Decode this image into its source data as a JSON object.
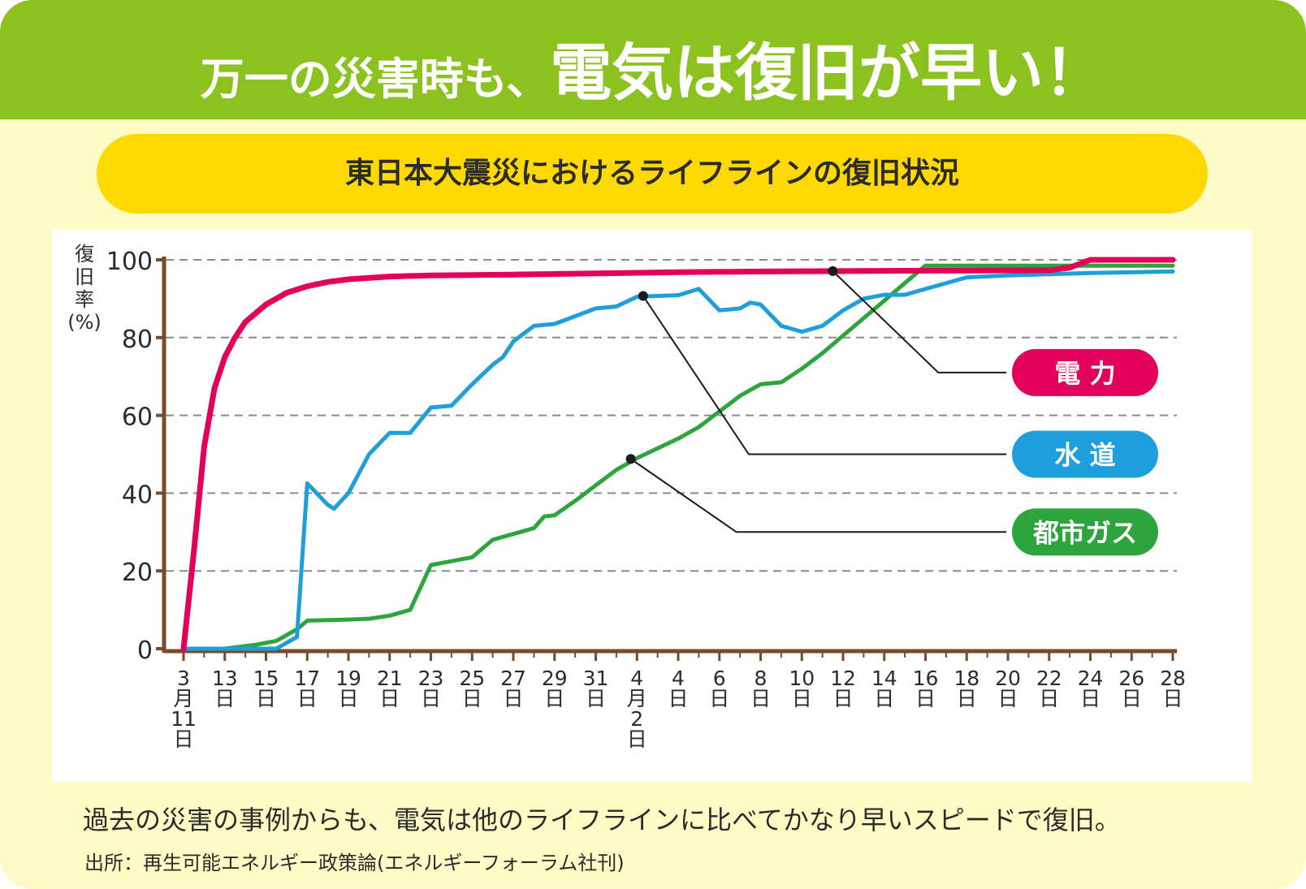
{
  "header": {
    "title_small": "万一の災害時も、",
    "title_big": "電気は復旧が早い！",
    "subtitle": "東日本大震災におけるライフラインの復旧状況"
  },
  "footer": {
    "caption": "過去の災害の事例からも、電気は他のライフラインに比べてかなり早いスピードで復旧。",
    "source": "出所：再生可能エネルギー政策論(エネルギーフォーラム社刊)"
  },
  "colors": {
    "electric": "#e3005a",
    "water": "#1e9edb",
    "gas": "#2ea53c",
    "axis": "#7a4a2a",
    "banner": "#8cc220",
    "pill": "#ffd900",
    "background": "#fffbc4"
  },
  "chart_data": {
    "type": "line",
    "ylabel": "復旧率(%)",
    "ylim": [
      0,
      100
    ],
    "yticks": [
      "0",
      "20",
      "40",
      "60",
      "80",
      "100"
    ],
    "grid": "horizontal dashed",
    "x_range": [
      0,
      48
    ],
    "x_ticks": [
      {
        "x": 0,
        "label": "3\n月\n11\n日"
      },
      {
        "x": 2,
        "label": "13\n日"
      },
      {
        "x": 4,
        "label": "15\n日"
      },
      {
        "x": 6,
        "label": "17\n日"
      },
      {
        "x": 8,
        "label": "19\n日"
      },
      {
        "x": 10,
        "label": "21\n日"
      },
      {
        "x": 12,
        "label": "23\n日"
      },
      {
        "x": 14,
        "label": "25\n日"
      },
      {
        "x": 16,
        "label": "27\n日"
      },
      {
        "x": 18,
        "label": "29\n日"
      },
      {
        "x": 20,
        "label": "31\n日"
      },
      {
        "x": 22,
        "label": "4\n月\n2\n日"
      },
      {
        "x": 24,
        "label": "4\n日"
      },
      {
        "x": 26,
        "label": "6\n日"
      },
      {
        "x": 28,
        "label": "8\n日"
      },
      {
        "x": 30,
        "label": "10\n日"
      },
      {
        "x": 32,
        "label": "12\n日"
      },
      {
        "x": 34,
        "label": "14\n日"
      },
      {
        "x": 36,
        "label": "16\n日"
      },
      {
        "x": 38,
        "label": "18\n日"
      },
      {
        "x": 40,
        "label": "20\n日"
      },
      {
        "x": 42,
        "label": "22\n日"
      },
      {
        "x": 44,
        "label": "24\n日"
      },
      {
        "x": 46,
        "label": "26\n日"
      },
      {
        "x": 48,
        "label": "28\n日"
      }
    ],
    "series": [
      {
        "name": "電 力",
        "color_key": "electric",
        "points": [
          [
            0,
            0
          ],
          [
            0.5,
            25
          ],
          [
            1,
            52
          ],
          [
            1.5,
            67
          ],
          [
            2,
            75
          ],
          [
            2.5,
            80
          ],
          [
            3,
            84
          ],
          [
            4,
            88.5
          ],
          [
            5,
            91.5
          ],
          [
            6,
            93.2
          ],
          [
            7,
            94.3
          ],
          [
            8,
            95
          ],
          [
            10,
            95.7
          ],
          [
            12,
            96
          ],
          [
            16,
            96.2
          ],
          [
            20,
            96.5
          ],
          [
            24,
            96.8
          ],
          [
            28,
            97
          ],
          [
            32,
            97.1
          ],
          [
            36,
            97.2
          ],
          [
            42,
            97.3
          ],
          [
            43,
            98
          ],
          [
            44,
            100
          ],
          [
            48,
            100
          ]
        ]
      },
      {
        "name": "水 道",
        "color_key": "water",
        "points": [
          [
            0,
            0
          ],
          [
            4.5,
            0
          ],
          [
            5.5,
            3
          ],
          [
            6,
            42.5
          ],
          [
            7,
            37
          ],
          [
            7.3,
            36
          ],
          [
            8,
            40
          ],
          [
            8.5,
            45
          ],
          [
            9,
            50
          ],
          [
            10,
            55.5
          ],
          [
            11,
            55.5
          ],
          [
            12,
            62
          ],
          [
            13,
            62.5
          ],
          [
            14,
            68
          ],
          [
            15,
            73
          ],
          [
            15.5,
            75
          ],
          [
            16,
            79
          ],
          [
            16.5,
            81
          ],
          [
            17,
            83
          ],
          [
            18,
            83.5
          ],
          [
            19,
            85.5
          ],
          [
            20,
            87.5
          ],
          [
            21,
            88
          ],
          [
            22,
            90.5
          ],
          [
            23,
            90.7
          ],
          [
            24,
            90.9
          ],
          [
            25,
            92.5
          ],
          [
            26,
            87
          ],
          [
            27,
            87.5
          ],
          [
            27.5,
            89
          ],
          [
            28,
            88.5
          ],
          [
            29,
            83
          ],
          [
            30,
            81.5
          ],
          [
            31,
            83
          ],
          [
            32,
            87
          ],
          [
            33,
            90
          ],
          [
            34,
            91
          ],
          [
            35,
            91
          ],
          [
            36,
            92.5
          ],
          [
            38,
            95.5
          ],
          [
            40,
            96
          ],
          [
            42,
            96.3
          ],
          [
            44,
            96.6
          ],
          [
            48,
            97
          ]
        ]
      },
      {
        "name": "都市ガス",
        "color_key": "gas",
        "points": [
          [
            0,
            0
          ],
          [
            2,
            0
          ],
          [
            3.5,
            1
          ],
          [
            4.5,
            2
          ],
          [
            5.5,
            5
          ],
          [
            6,
            7.2
          ],
          [
            8,
            7.5
          ],
          [
            9,
            7.7
          ],
          [
            10,
            8.5
          ],
          [
            11,
            10
          ],
          [
            12,
            21.5
          ],
          [
            13,
            22.5
          ],
          [
            14,
            23.5
          ],
          [
            15,
            28
          ],
          [
            16,
            29.5
          ],
          [
            17,
            31
          ],
          [
            17.5,
            34
          ],
          [
            18,
            34.3
          ],
          [
            19,
            38
          ],
          [
            20,
            42
          ],
          [
            21,
            46
          ],
          [
            22,
            49
          ],
          [
            23,
            51.5
          ],
          [
            24,
            54
          ],
          [
            25,
            57
          ],
          [
            26,
            61
          ],
          [
            27,
            65
          ],
          [
            28,
            68
          ],
          [
            29,
            68.5
          ],
          [
            30,
            72
          ],
          [
            31,
            76
          ],
          [
            32,
            80.5
          ],
          [
            33,
            85
          ],
          [
            34,
            89.5
          ],
          [
            35,
            94
          ],
          [
            36,
            98.5
          ],
          [
            37,
            98.5
          ],
          [
            48,
            98.5
          ]
        ]
      }
    ],
    "callouts": [
      {
        "series_index": 0,
        "anchor": [
          31.5,
          97.1
        ],
        "legend_y": 71,
        "label": "電 力"
      },
      {
        "series_index": 1,
        "anchor": [
          22.3,
          90.7
        ],
        "legend_y": 50,
        "label": "水 道"
      },
      {
        "series_index": 2,
        "anchor": [
          21.7,
          48.8
        ],
        "legend_y": 30,
        "label": "都市ガス"
      }
    ]
  }
}
